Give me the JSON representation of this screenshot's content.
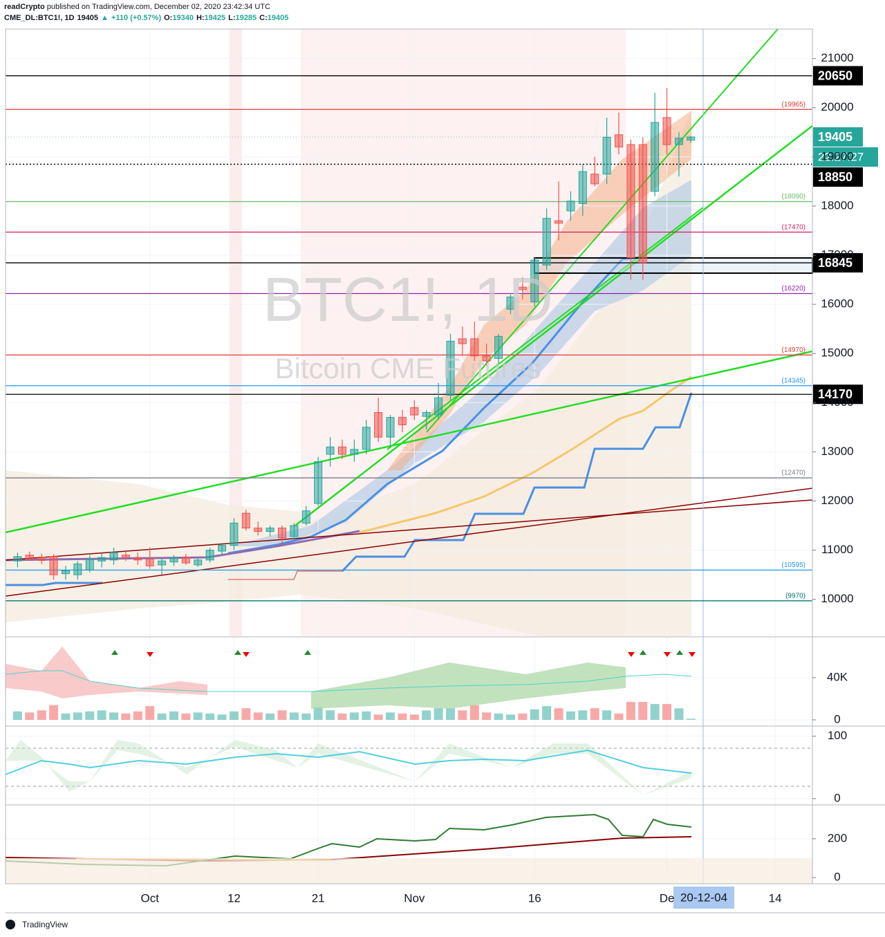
{
  "header": {
    "author": "readCrypto",
    "published": "published on TradingView.com, December 02, 2020 23:42:34 UTC",
    "symbol": "CME_DL:BTC1!, 1D",
    "arrow": "▲",
    "change": "+110 (+0.57%)",
    "ohlc_labels": [
      "O:",
      "H:",
      "L:",
      "C:"
    ]
  },
  "footer": {
    "logo": "TradingView"
  },
  "chart_data": {
    "type": "candlestick",
    "title": "BTC1!, 1D",
    "subtitle": "Bitcoin CME Futures",
    "up_color": "#26a69a",
    "down_color": "#ef5350",
    "grid": true,
    "x": [
      -11,
      -10,
      -9,
      -8,
      -7,
      -6,
      -5,
      -4,
      -3,
      -2,
      -1,
      0,
      1,
      2,
      3,
      4,
      5,
      6,
      7,
      8,
      9,
      10,
      11,
      12,
      13,
      14,
      15,
      16,
      17,
      18,
      19,
      20,
      21,
      22,
      23,
      24,
      25,
      26,
      27,
      28,
      29,
      30,
      31,
      32,
      33,
      34,
      35,
      36,
      37,
      38,
      39,
      40,
      41,
      42,
      43,
      44,
      45
    ],
    "open": [
      10780,
      10900,
      10860,
      10870,
      10520,
      10500,
      10600,
      10780,
      10800,
      10900,
      10850,
      10820,
      10700,
      10760,
      10860,
      10700,
      10800,
      10980,
      11100,
      11750,
      11450,
      11380,
      11450,
      11280,
      11550,
      11950,
      12950,
      13100,
      12950,
      13050,
      13800,
      13300,
      13700,
      13900,
      13720,
      13750,
      14150,
      15300,
      15300,
      14950,
      14900,
      15900,
      16350,
      16050,
      16800,
      17700,
      17900,
      18050,
      18650,
      18650,
      19450,
      19250,
      19250,
      18300,
      19800,
      19250,
      19340
    ],
    "high": [
      10950,
      10970,
      10930,
      10920,
      10680,
      10780,
      10900,
      10930,
      11050,
      11000,
      10950,
      11060,
      10850,
      10900,
      10920,
      10850,
      11050,
      11150,
      11650,
      11820,
      11580,
      11500,
      11500,
      11550,
      11900,
      12900,
      13300,
      13250,
      13250,
      13650,
      14100,
      13750,
      13850,
      14050,
      13850,
      14400,
      15400,
      15550,
      15650,
      15200,
      15400,
      16200,
      16550,
      16950,
      17950,
      18500,
      18300,
      18850,
      19000,
      19800,
      19900,
      19350,
      19400,
      20300,
      20400,
      19500,
      19425
    ],
    "low": [
      10650,
      10780,
      10720,
      10400,
      10400,
      10400,
      10550,
      10650,
      10700,
      10780,
      10700,
      10620,
      10500,
      10680,
      10700,
      10660,
      10750,
      10900,
      11000,
      11400,
      11300,
      11280,
      11100,
      11200,
      11500,
      11900,
      12700,
      12850,
      12800,
      12950,
      13200,
      13100,
      13400,
      13650,
      13450,
      13650,
      14050,
      14950,
      14850,
      14750,
      14800,
      15800,
      16100,
      15950,
      16700,
      17300,
      17700,
      17800,
      18400,
      18450,
      19050,
      16500,
      16500,
      18200,
      19050,
      18600,
      19285
    ],
    "close": [
      10870,
      10820,
      10790,
      10500,
      10580,
      10720,
      10820,
      10850,
      10950,
      10850,
      10800,
      10680,
      10780,
      10850,
      10740,
      10800,
      11000,
      11100,
      11550,
      11450,
      11380,
      11450,
      11250,
      11500,
      11800,
      12800,
      13100,
      12950,
      13050,
      13500,
      13300,
      13700,
      13550,
      13750,
      13800,
      14100,
      15250,
      15200,
      14950,
      14850,
      15350,
      16150,
      16300,
      16900,
      17750,
      17650,
      18100,
      18700,
      18450,
      19400,
      19200,
      16950,
      16850,
      19700,
      19250,
      19380,
      19405
    ],
    "xlim": [
      -12,
      55.1
    ],
    "xticks": [
      {
        "value": 0,
        "label": "Oct"
      },
      {
        "value": 7,
        "label": "12"
      },
      {
        "value": 14,
        "label": "21"
      },
      {
        "value": 22,
        "label": "Nov"
      },
      {
        "value": 32,
        "label": "16"
      },
      {
        "value": 43,
        "label": "De"
      },
      {
        "value": 52,
        "label": "14"
      }
    ],
    "ylim": [
      9250,
      21600
    ],
    "yticks": [
      10000,
      11000,
      12000,
      13000,
      14000,
      15000,
      16000,
      17000,
      18000,
      19000,
      20000,
      21000
    ],
    "levels": [
      {
        "value": 20650,
        "color": "#000000",
        "tag": true
      },
      {
        "value": 19965,
        "label": "(19965)",
        "color": "#e53935"
      },
      {
        "value": 18850,
        "color": "#000000",
        "tag": true,
        "dotted": true
      },
      {
        "value": 18090,
        "label": "(18090)",
        "color": "#66bb6a"
      },
      {
        "value": 17470,
        "label": "(17470)",
        "color": "#d81b60"
      },
      {
        "value": 16845,
        "color": "#000000",
        "tag": true
      },
      {
        "value": 16220,
        "label": "(16220)",
        "color": "#8e24aa"
      },
      {
        "value": 14970,
        "label": "(14970)",
        "color": "#e53935"
      },
      {
        "value": 14345,
        "label": "(14345)",
        "color": "#2196f3"
      },
      {
        "value": 14170,
        "color": "#000000",
        "tag": true
      },
      {
        "value": 12470,
        "label": "(12470)",
        "color": "#787b86"
      },
      {
        "value": 10595,
        "label": "(10595)",
        "color": "#2196f3"
      },
      {
        "value": 9970,
        "label": "(9970)",
        "color": "#00796b"
      }
    ],
    "last_price": {
      "value": 19405,
      "countdown": "22:27:27",
      "color": "#26a69a"
    },
    "crosshair_label": "20-12-04",
    "volume": {
      "values": [
        8000,
        7000,
        9000,
        14000,
        6000,
        7000,
        8000,
        9000,
        7000,
        6000,
        8000,
        13000,
        6000,
        8000,
        6000,
        7000,
        6000,
        5000,
        8000,
        11000,
        7000,
        6000,
        9000,
        7000,
        6000,
        12000,
        9000,
        6000,
        7000,
        8000,
        5000,
        7000,
        6000,
        5000,
        9000,
        11000,
        11000,
        9000,
        14000,
        7000,
        6000,
        5000,
        6000,
        10000,
        13000,
        11000,
        8000,
        9000,
        11000,
        9000,
        6000,
        17000,
        17000,
        15000,
        15000,
        11000,
        1000
      ],
      "ylim": [
        -4600,
        78000
      ],
      "yticks": [
        0,
        {
          "value": 40000,
          "label": "40K"
        }
      ]
    },
    "oscillator": {
      "ylim": [
        -9,
        114
      ],
      "yticks": [
        0,
        100
      ]
    },
    "momentum": {
      "ylim": [
        -32,
        371
      ],
      "yticks": [
        0,
        200
      ]
    }
  }
}
